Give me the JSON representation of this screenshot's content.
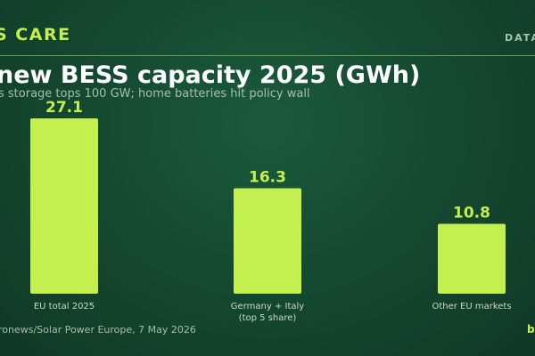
{
  "header": {
    "brand": "S CARE",
    "section_tag": "DATA",
    "footer_source": "ronews/Solar Power Europe, 7 May 2026",
    "footer_logo": "b"
  },
  "colors": {
    "accent": "#c3f04f",
    "background": "#154a32",
    "rule": "#6f9a5a"
  },
  "chart_data": {
    "type": "bar",
    "title": "new BESS capacity 2025 (GWh)",
    "subtitle": "s storage tops 100 GW; home batteries hit policy wall",
    "categories": [
      "EU total 2025",
      "Germany + Italy\n(top 5 share)",
      "Other EU markets"
    ],
    "values": [
      27.1,
      16.3,
      10.8
    ],
    "value_labels": [
      "27.1",
      "16.3",
      "10.8"
    ],
    "ylim": [
      0,
      27.1
    ],
    "grid": false,
    "legend": "none"
  }
}
